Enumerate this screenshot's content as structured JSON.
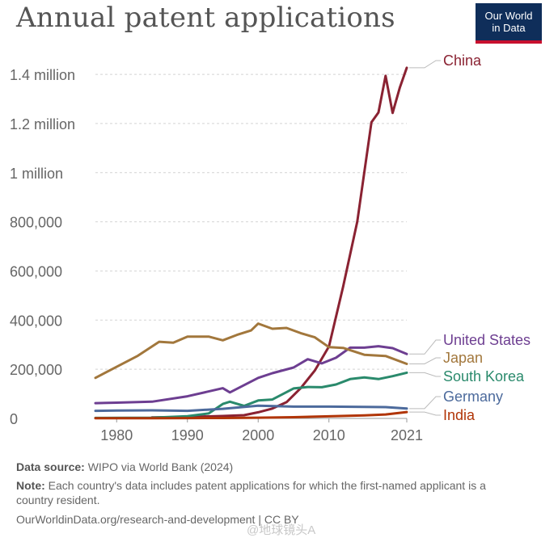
{
  "title": "Annual patent applications",
  "logo": {
    "line1": "Our World",
    "line2": "in Data"
  },
  "footer": {
    "source_label": "Data source:",
    "source_text": "WIPO via World Bank (2024)",
    "note_label": "Note:",
    "note_text": "Each country's data includes patent applications for which the first-named applicant is a country resident.",
    "url_text": "OurWorldinData.org/research-and-development | CC BY"
  },
  "watermark": "@地球镜头A",
  "chart_data": {
    "type": "line",
    "title": "Annual patent applications",
    "xlabel": "",
    "ylabel": "",
    "xlim": [
      1977,
      2021
    ],
    "ylim": [
      0,
      1420000
    ],
    "x_ticks": [
      1980,
      1990,
      2000,
      2010,
      2021
    ],
    "x_tick_labels": [
      "1980",
      "1990",
      "2000",
      "2010",
      "2021"
    ],
    "y_ticks": [
      0,
      200000,
      400000,
      600000,
      800000,
      1000000,
      1200000,
      1400000
    ],
    "y_tick_labels": [
      "0",
      "200,000",
      "400,000",
      "600,000",
      "800,000",
      "1 million",
      "1.2 million",
      "1.4 million"
    ],
    "grid": "horizontal dotted",
    "legend": "end-of-line labels, right",
    "series": [
      {
        "name": "China",
        "color": "#8a2232",
        "x": [
          1985,
          1990,
          1995,
          1998,
          2000,
          2002,
          2004,
          2006,
          2008,
          2010,
          2012,
          2014,
          2016,
          2017,
          2018,
          2019,
          2020,
          2021
        ],
        "y": [
          4000,
          6000,
          10000,
          13000,
          25000,
          40000,
          66000,
          123000,
          195000,
          293000,
          536000,
          801000,
          1205000,
          1245000,
          1394000,
          1243000,
          1345000,
          1427000
        ]
      },
      {
        "name": "United States",
        "color": "#6d3e91",
        "x": [
          1977,
          1980,
          1985,
          1990,
          1995,
          1996,
          2000,
          2002,
          2005,
          2007,
          2009,
          2011,
          2013,
          2015,
          2017,
          2019,
          2021
        ],
        "y": [
          62000,
          64000,
          68000,
          90000,
          123000,
          106000,
          165000,
          184000,
          207000,
          241000,
          224000,
          247000,
          288000,
          288000,
          294000,
          286000,
          262000
        ]
      },
      {
        "name": "Japan",
        "color": "#a2773c",
        "x": [
          1977,
          1980,
          1983,
          1986,
          1988,
          1990,
          1993,
          1995,
          1997,
          1999,
          2000,
          2002,
          2004,
          2006,
          2008,
          2010,
          2012,
          2015,
          2018,
          2021
        ],
        "y": [
          165000,
          210000,
          255000,
          312000,
          308000,
          333000,
          333000,
          318000,
          340000,
          358000,
          386000,
          365000,
          368000,
          347000,
          330000,
          290000,
          287000,
          259000,
          254000,
          222000
        ]
      },
      {
        "name": "South Korea",
        "color": "#2a8a6c",
        "x": [
          1977,
          1985,
          1990,
          1993,
          1995,
          1996,
          1998,
          2000,
          2002,
          2005,
          2007,
          2009,
          2011,
          2013,
          2015,
          2017,
          2019,
          2021
        ],
        "y": [
          2000,
          3000,
          9000,
          20000,
          59000,
          68000,
          51000,
          73000,
          77000,
          122000,
          128000,
          127000,
          138000,
          160000,
          167000,
          160000,
          172000,
          186000
        ]
      },
      {
        "name": "Germany",
        "color": "#4c6a9c",
        "x": [
          1977,
          1980,
          1985,
          1990,
          1995,
          2000,
          2005,
          2010,
          2015,
          2018,
          2021
        ],
        "y": [
          31000,
          32000,
          33000,
          31000,
          39000,
          52000,
          48000,
          48000,
          47000,
          46000,
          40000
        ]
      },
      {
        "name": "India",
        "color": "#b13507",
        "x": [
          1977,
          1985,
          1990,
          1995,
          2000,
          2005,
          2010,
          2015,
          2018,
          2021
        ],
        "y": [
          1000,
          1000,
          1200,
          1500,
          3000,
          5000,
          8500,
          12500,
          16000,
          26000
        ]
      }
    ]
  }
}
